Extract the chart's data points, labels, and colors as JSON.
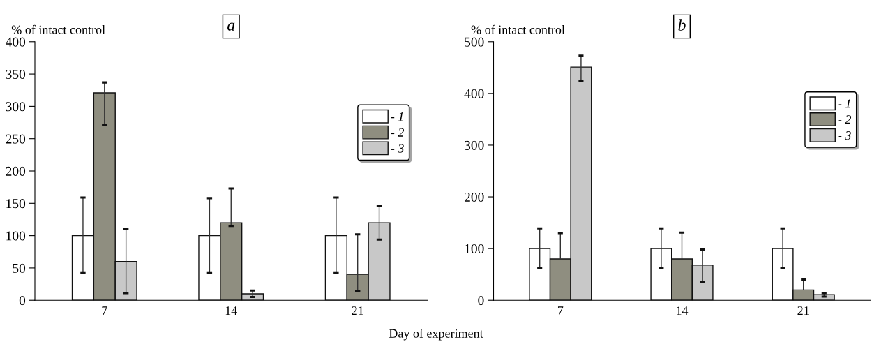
{
  "chart_data": [
    {
      "type": "bar",
      "title": "a",
      "ylabel": "% of intact control",
      "xlabel": "Day of experiment",
      "categories": [
        "7",
        "14",
        "21"
      ],
      "ylim": [
        0,
        400
      ],
      "yticks": [
        0,
        50,
        100,
        150,
        200,
        250,
        300,
        350,
        400
      ],
      "grid": false,
      "legend": "right",
      "series": [
        {
          "name": "- 1",
          "color": "#ffffff",
          "values": [
            100,
            100,
            100
          ],
          "errors": [
            [
              43,
              159
            ],
            [
              43,
              158
            ],
            [
              43,
              159
            ]
          ]
        },
        {
          "name": "- 2",
          "color": "#8f8e80",
          "values": [
            321,
            120,
            40
          ],
          "errors": [
            [
              271,
              337
            ],
            [
              115,
              173
            ],
            [
              14,
              102
            ]
          ]
        },
        {
          "name": "- 3",
          "color": "#c8c8c8",
          "values": [
            60,
            10,
            120
          ],
          "errors": [
            [
              11,
              110
            ],
            [
              5,
              15
            ],
            [
              94,
              146
            ]
          ]
        }
      ]
    },
    {
      "type": "bar",
      "title": "b",
      "ylabel": "% of intact control",
      "categories": [
        "7",
        "14",
        "21"
      ],
      "ylim": [
        0,
        500
      ],
      "yticks": [
        0,
        100,
        200,
        300,
        400,
        500
      ],
      "grid": false,
      "legend": "top right",
      "series": [
        {
          "name": "- 1",
          "color": "#ffffff",
          "values": [
            100,
            100,
            100
          ],
          "errors": [
            [
              63,
              139
            ],
            [
              63,
              139
            ],
            [
              63,
              139
            ]
          ]
        },
        {
          "name": "- 2",
          "color": "#8f8e80",
          "values": [
            80,
            80,
            20
          ],
          "errors": [
            [
              80,
              130
            ],
            [
              80,
              131
            ],
            [
              20,
              40
            ]
          ]
        },
        {
          "name": "- 3",
          "color": "#c8c8c8",
          "values": [
            451,
            68,
            11
          ],
          "errors": [
            [
              424,
              473
            ],
            [
              35,
              98
            ],
            [
              7,
              14
            ]
          ]
        }
      ]
    }
  ]
}
